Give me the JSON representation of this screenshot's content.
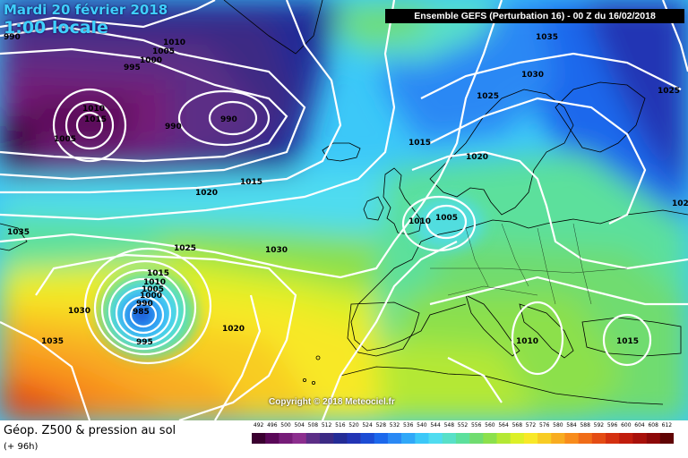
{
  "header": {
    "date": "Mardi 20 février 2018",
    "local_time": "1:00 locale",
    "run_info": "Ensemble GEFS  (Perturbation 16)  - 00 Z du 16/02/2018"
  },
  "copyright": "Copyright © 2018 Meteociel.fr",
  "footer": {
    "title": "Géop. Z500 & pression au sol",
    "subtitle": "(+ 96h)"
  },
  "scale": {
    "values": [
      "492",
      "496",
      "500",
      "504",
      "508",
      "512",
      "516",
      "520",
      "524",
      "528",
      "532",
      "536",
      "540",
      "544",
      "548",
      "552",
      "556",
      "560",
      "564",
      "568",
      "572",
      "576",
      "580",
      "584",
      "588",
      "592",
      "596",
      "600",
      "604",
      "608",
      "612"
    ],
    "colors": [
      "#3a0030",
      "#5a0858",
      "#761c78",
      "#8c2e8e",
      "#5c2e86",
      "#3c2a84",
      "#242c96",
      "#2234b4",
      "#1c4cd4",
      "#1c68ec",
      "#2a88f4",
      "#30a8f8",
      "#3cc8f8",
      "#50dcf0",
      "#58e0c8",
      "#5ce09c",
      "#70dc70",
      "#8ce04c",
      "#b4e834",
      "#dcf028",
      "#f8e828",
      "#f8cc24",
      "#f8ac20",
      "#f88c1c",
      "#f06c18",
      "#e44c14",
      "#d43010",
      "#c01c0c",
      "#a8100a",
      "#8c0808",
      "#600404"
    ]
  },
  "isobar_labels": [
    {
      "text": "990"
    },
    {
      "text": "1010"
    },
    {
      "text": "1005"
    },
    {
      "text": "1000"
    },
    {
      "text": "995"
    },
    {
      "text": "1010"
    },
    {
      "text": "1015"
    },
    {
      "text": "1005"
    },
    {
      "text": "990"
    },
    {
      "text": "990"
    },
    {
      "text": "1020"
    },
    {
      "text": "1015"
    },
    {
      "text": "1035"
    },
    {
      "text": "1025"
    },
    {
      "text": "1030"
    },
    {
      "text": "1015"
    },
    {
      "text": "1010"
    },
    {
      "text": "1005"
    },
    {
      "text": "1000"
    },
    {
      "text": "990"
    },
    {
      "text": "985"
    },
    {
      "text": "995"
    },
    {
      "text": "1030"
    },
    {
      "text": "1035"
    },
    {
      "text": "1020"
    },
    {
      "text": "1035"
    },
    {
      "text": "1030"
    },
    {
      "text": "1025"
    },
    {
      "text": "1025"
    },
    {
      "text": "1015"
    },
    {
      "text": "1020"
    },
    {
      "text": "1010"
    },
    {
      "text": "1005"
    },
    {
      "text": "1010"
    },
    {
      "text": "1015"
    },
    {
      "text": "102"
    }
  ]
}
